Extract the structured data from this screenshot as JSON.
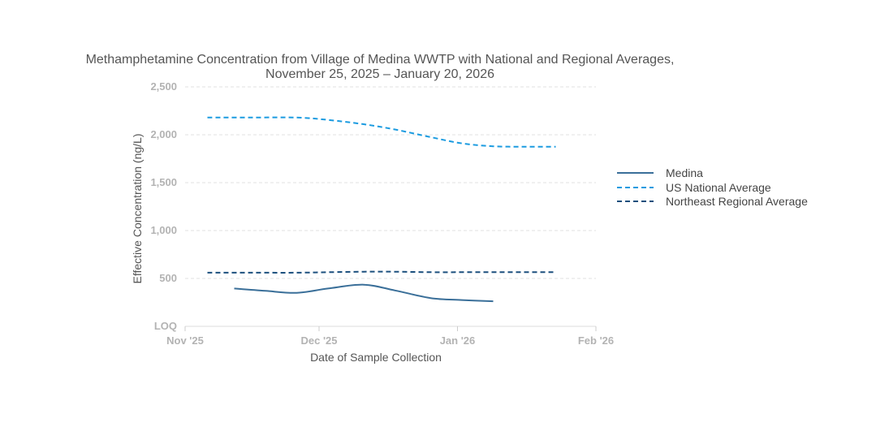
{
  "chart_data": {
    "type": "line",
    "title": "Methamphetamine Concentration from Village of Medina WWTP with National and Regional Averages,",
    "subtitle": "November 25, 2025 – January 20, 2026",
    "xlabel": "Date of Sample Collection",
    "ylabel": "Effective Concentration (ng/L)",
    "x_ticks": [
      {
        "label": "Nov '25",
        "day": 0
      },
      {
        "label": "Dec '25",
        "day": 30
      },
      {
        "label": "Jan '26",
        "day": 61
      },
      {
        "label": "Feb '26",
        "day": 92
      }
    ],
    "xlim": [
      0,
      92
    ],
    "ylim": [
      0,
      2500
    ],
    "y_ticks": [
      {
        "label": "LOQ",
        "value": 0
      },
      {
        "label": "500",
        "value": 500
      },
      {
        "label": "1,000",
        "value": 1000
      },
      {
        "label": "1,500",
        "value": 1500
      },
      {
        "label": "2,000",
        "value": 2000
      },
      {
        "label": "2,500",
        "value": 2500
      }
    ],
    "grid": true,
    "legend_position": "right",
    "series": [
      {
        "name": "Medina",
        "color": "#3a6f99",
        "style": "solid",
        "points": [
          [
            11,
            395
          ],
          [
            18,
            370
          ],
          [
            25,
            350
          ],
          [
            32,
            395
          ],
          [
            40,
            435
          ],
          [
            47,
            375
          ],
          [
            55,
            295
          ],
          [
            62,
            275
          ],
          [
            69,
            262
          ]
        ]
      },
      {
        "name": "US National Average",
        "color": "#1b9be0",
        "style": "dashed",
        "points": [
          [
            5,
            2180
          ],
          [
            15,
            2180
          ],
          [
            25,
            2180
          ],
          [
            32,
            2155
          ],
          [
            40,
            2110
          ],
          [
            47,
            2055
          ],
          [
            55,
            1975
          ],
          [
            62,
            1910
          ],
          [
            69,
            1880
          ],
          [
            76,
            1875
          ],
          [
            83,
            1875
          ]
        ]
      },
      {
        "name": "Northeast Regional Average",
        "color": "#1b4f7d",
        "style": "dashed",
        "points": [
          [
            5,
            560
          ],
          [
            15,
            560
          ],
          [
            25,
            560
          ],
          [
            32,
            565
          ],
          [
            40,
            570
          ],
          [
            47,
            570
          ],
          [
            55,
            565
          ],
          [
            62,
            565
          ],
          [
            69,
            565
          ],
          [
            76,
            565
          ],
          [
            83,
            565
          ]
        ]
      }
    ]
  }
}
